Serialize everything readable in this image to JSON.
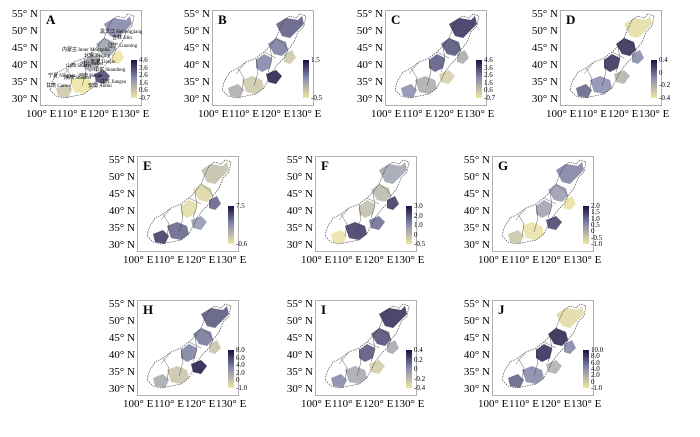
{
  "axes": {
    "lat_ticks": [
      "55° N",
      "50° N",
      "45° N",
      "40° N",
      "35° N",
      "30° N"
    ],
    "lon_ticks": [
      "100° E",
      "110° E",
      "120° E",
      "130° E"
    ]
  },
  "colors": {
    "low": "#efe6a0",
    "mid": "#8a8fb0",
    "high": "#1a1040",
    "boundary": "#333333",
    "frame": "#b0b0b0"
  },
  "panels": [
    {
      "id": "A",
      "label": "A",
      "colorbar": [
        "4.6",
        "3.6",
        "2.6",
        "1.6",
        "0.6",
        "-0.7"
      ],
      "provinces": [
        "黑龙江 Heilongjiang",
        "吉林 Jilin",
        "辽宁 Liaoning",
        "内蒙古 Inner Mongolia",
        "北京 Beijing",
        "天津 Tianjin",
        "河北 Hebei",
        "山西 Shanxi",
        "山东 Shandong",
        "河南 Henan",
        "陕西 Shaanxi",
        "宁夏 Ningxia",
        "甘肃 Gansu",
        "安徽 Anhui",
        "江苏 Jiangsu"
      ]
    },
    {
      "id": "B",
      "label": "B",
      "colorbar": [
        "1.5",
        "-0.5"
      ]
    },
    {
      "id": "C",
      "label": "C",
      "colorbar": [
        "4.6",
        "3.6",
        "2.6",
        "1.6",
        "0.6",
        "-0.7"
      ]
    },
    {
      "id": "D",
      "label": "D",
      "colorbar": [
        "0.4",
        "0",
        "-0.2",
        "-0.4"
      ]
    },
    {
      "id": "E",
      "label": "E",
      "colorbar": [
        "7.5",
        "-0.6"
      ]
    },
    {
      "id": "F",
      "label": "F",
      "colorbar": [
        "3.0",
        "2.0",
        "1.0",
        "0",
        "-0.5"
      ]
    },
    {
      "id": "G",
      "label": "G",
      "colorbar": [
        "2.0",
        "1.5",
        "1.0",
        "0.5",
        "0",
        "-0.5",
        "-1.0"
      ]
    },
    {
      "id": "H",
      "label": "H",
      "colorbar": [
        "8.0",
        "6.0",
        "4.0",
        "2.0",
        "0",
        "-1.0"
      ]
    },
    {
      "id": "I",
      "label": "I",
      "colorbar": [
        "0.4",
        "0.2",
        "0",
        "-0.2",
        "-0.4"
      ]
    },
    {
      "id": "J",
      "label": "J",
      "colorbar": [
        "10.0",
        "8.0",
        "6.0",
        "4.0",
        "2.0",
        "0",
        "-1.0"
      ]
    }
  ]
}
